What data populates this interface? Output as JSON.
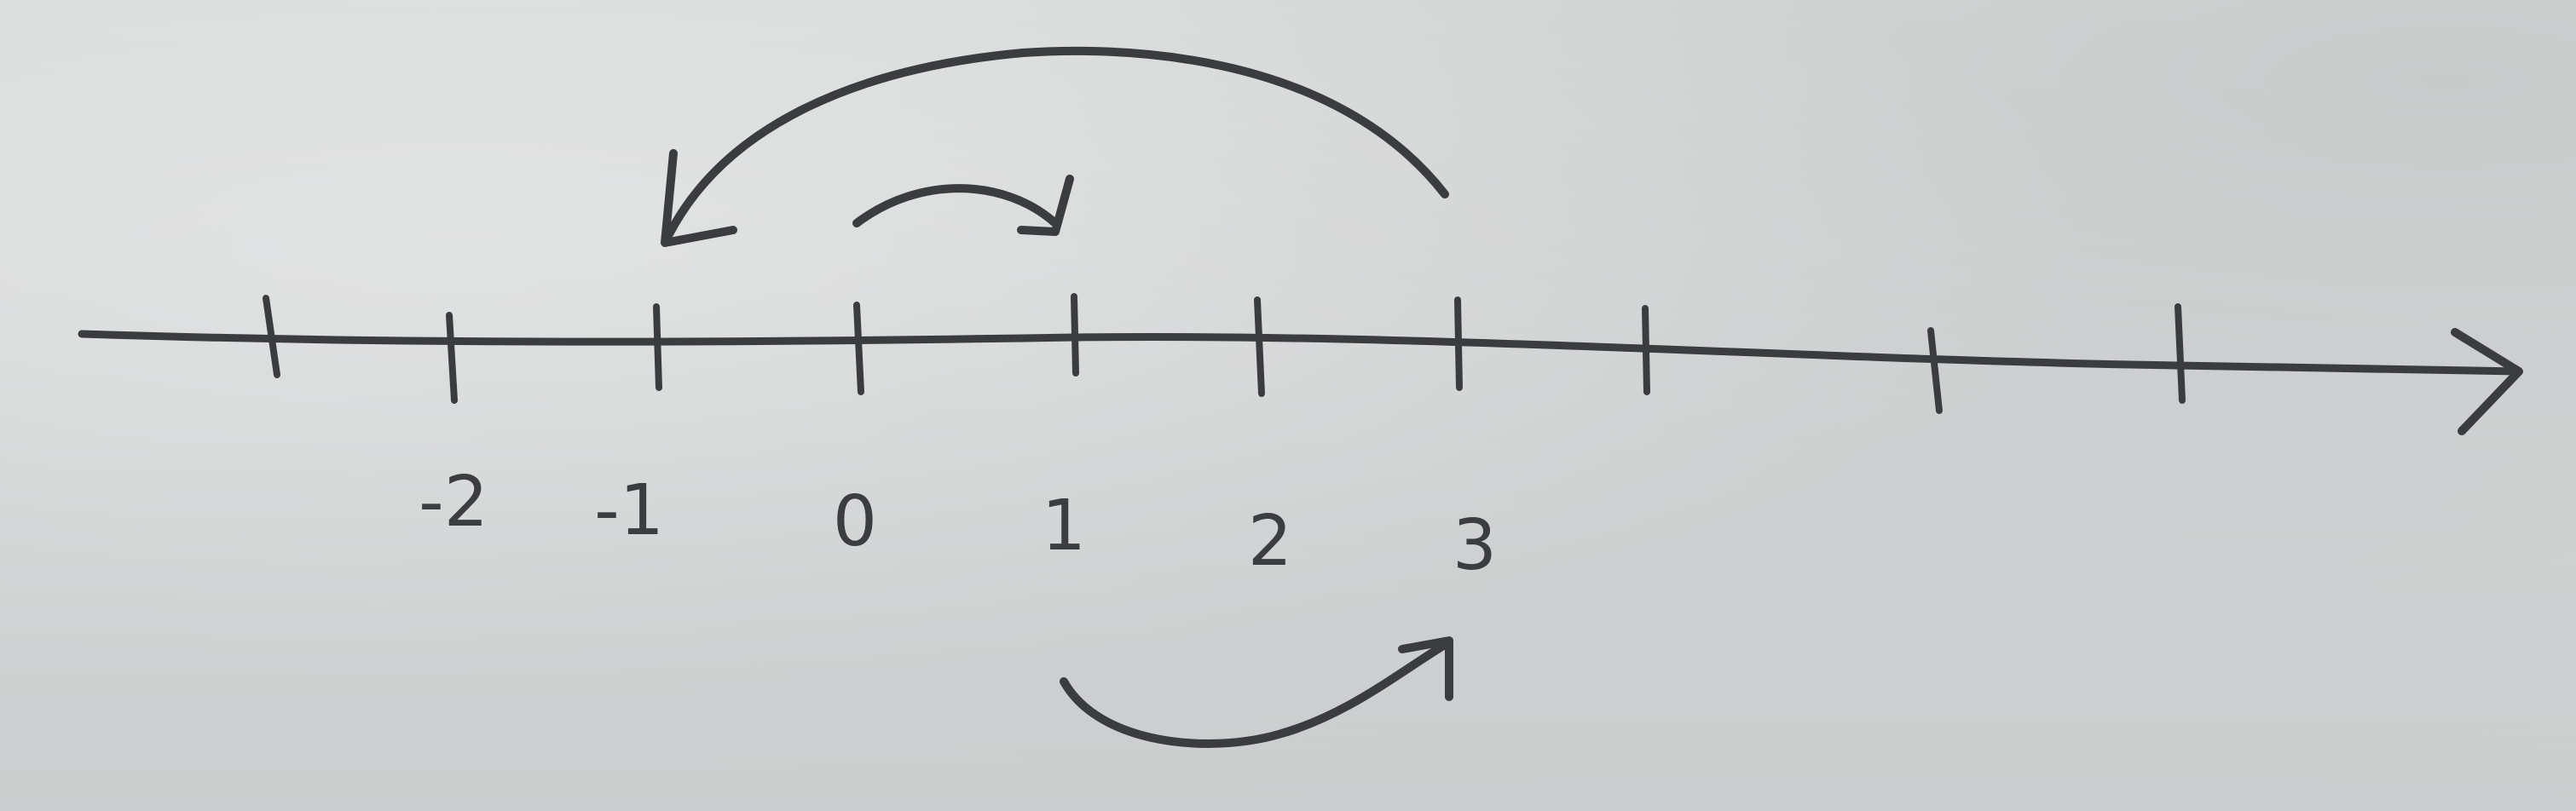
{
  "number_line": {
    "tick_labels": [
      "-2",
      "-1",
      "0",
      "1",
      "2",
      "3"
    ],
    "has_right_arrow": true
  },
  "jumps": [
    {
      "from": 0,
      "to": 1,
      "direction": "right",
      "side": "above"
    },
    {
      "from": 3,
      "to": -1,
      "direction": "left",
      "side": "above"
    },
    {
      "from": 1,
      "to": 3,
      "direction": "right",
      "side": "below"
    }
  ],
  "colors": {
    "paper": "#d4d6d6",
    "pencil": "#3b3c3f"
  }
}
